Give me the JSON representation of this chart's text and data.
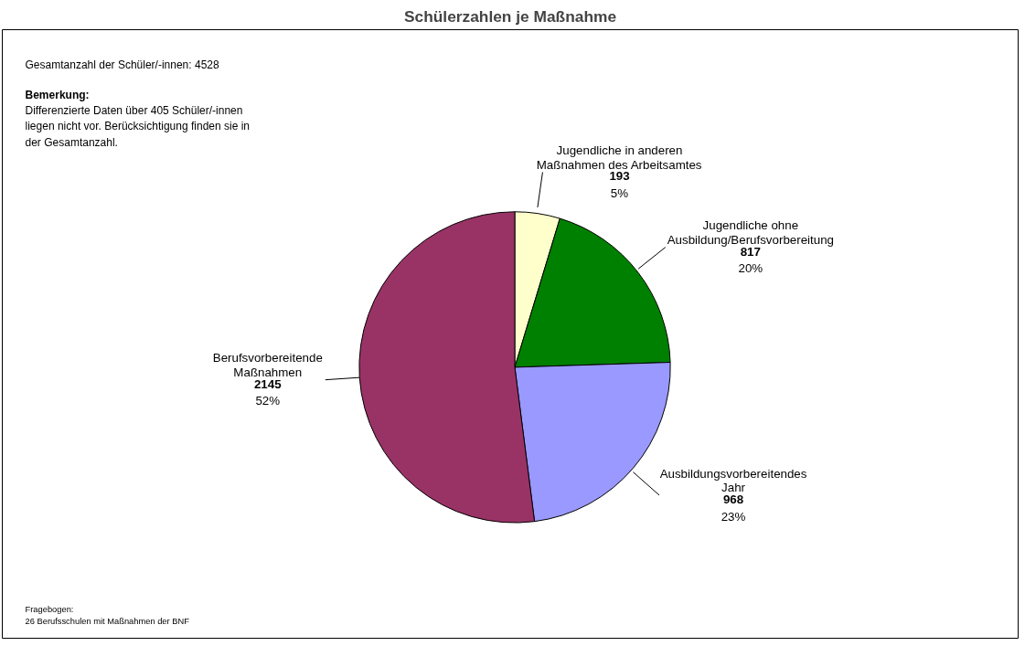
{
  "chart_data": {
    "type": "pie",
    "title": "Schülerzahlen je Maßnahme",
    "categories": [
      "Jugendliche in anderen\nMaßnahmen des Arbeitsamtes",
      "Jugendliche ohne\nAusbildung/Berufsvorbereitung",
      "Ausbildungsvorbereitendes\nJahr",
      "Berufsvorbereitende\nMaßnahmen"
    ],
    "values": [
      193,
      817,
      968,
      2145
    ],
    "colors": [
      "#ffffcc",
      "#008000",
      "#9999ff",
      "#993366"
    ],
    "value_labels": [
      "193\n5%",
      "817\n20%",
      "968\n23%",
      "2145\n52%"
    ],
    "annotations": [
      "Gesamtanzahl der Schüler/-innen: 4528",
      "Bemerkung:",
      "Differenzierte Daten über 405 Schüler/-innen\nliegen nicht vor. Berücksichtigung finden sie in\nder Gesamtanzahl.",
      "Fragebogen:\n26 Berufsschulen mit Maßnahmen der BNF"
    ]
  }
}
